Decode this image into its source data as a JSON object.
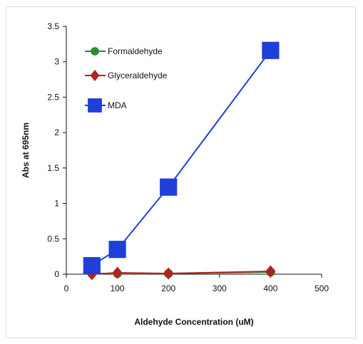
{
  "chart_data": {
    "type": "line",
    "title": "",
    "xlabel": "Aldehyde Concentration (uM)",
    "ylabel": "Abs at 695nm",
    "xlim": [
      0,
      500
    ],
    "ylim": [
      0,
      3.5
    ],
    "xticks": [
      "0",
      "100",
      "200",
      "300",
      "400",
      "500"
    ],
    "yticks": [
      "0",
      "0.5",
      "1",
      "1.5",
      "2",
      "2.5",
      "3",
      "3.5"
    ],
    "grid": false,
    "legend_position": "top-left",
    "series": [
      {
        "name": "Formaldehyde",
        "color": "#2e8b2e",
        "marker": "circle",
        "x": [
          50,
          100,
          200,
          400
        ],
        "y": [
          0.01,
          0.01,
          0.01,
          0.03
        ]
      },
      {
        "name": "Glyceraldehyde",
        "color": "#b22222",
        "marker": "diamond",
        "x": [
          50,
          100,
          200,
          400
        ],
        "y": [
          0.0,
          0.02,
          0.01,
          0.04
        ]
      },
      {
        "name": "MDA",
        "color": "#1f3fd8",
        "marker": "square",
        "x": [
          50,
          100,
          200,
          400
        ],
        "y": [
          0.12,
          0.35,
          1.23,
          3.16
        ]
      }
    ]
  }
}
